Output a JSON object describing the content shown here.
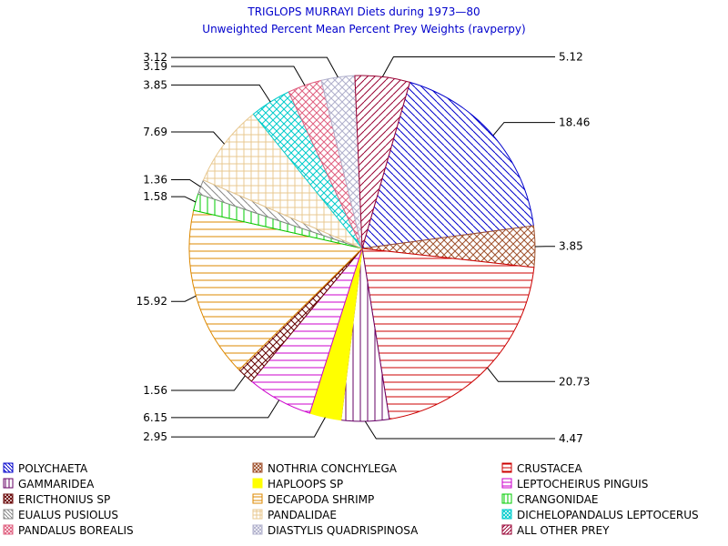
{
  "chart_data": {
    "type": "pie",
    "title": "TRIGLOPS MURRAYI Diets during 1973—80",
    "subtitle": "Unweighted Percent Mean Percent Prey  Weights (ravperpy)",
    "legend_position": "bottom",
    "slices": [
      {
        "name": "POLYCHAETA",
        "value": 18.46,
        "label": "18.46",
        "color": "#0000cc",
        "pattern": "diag-down"
      },
      {
        "name": "NOTHRIA CONCHYLEGA",
        "value": 3.85,
        "label": "3.85",
        "color": "#a0522d",
        "pattern": "crosshatch"
      },
      {
        "name": "CRUSTACEA",
        "value": 20.73,
        "label": "20.73",
        "color": "#cc0000",
        "pattern": "horizontal"
      },
      {
        "name": "GAMMARIDEA",
        "value": 4.47,
        "label": "4.47",
        "color": "#660066",
        "pattern": "vertical"
      },
      {
        "name": "HAPLOOPS SP",
        "value": 2.95,
        "label": "2.95",
        "color": "#ffff00",
        "pattern": "solid"
      },
      {
        "name": "LEPTOCHEIRUS PINGUIS",
        "value": 6.15,
        "label": "6.15",
        "color": "#cc00cc",
        "pattern": "horizontal"
      },
      {
        "name": "ERICTHONIUS SP",
        "value": 1.56,
        "label": "1.56",
        "color": "#660000",
        "pattern": "crosshatch"
      },
      {
        "name": "DECAPODA SHRIMP",
        "value": 15.92,
        "label": "15.92",
        "color": "#dd8800",
        "pattern": "horizontal"
      },
      {
        "name": "CRANGONIDAE",
        "value": 1.58,
        "label": "1.58",
        "color": "#00cc00",
        "pattern": "vertical"
      },
      {
        "name": "EUALUS PUSIOLUS",
        "value": 1.36,
        "label": "1.36",
        "color": "#888888",
        "pattern": "diag-down"
      },
      {
        "name": "PANDALIDAE",
        "value": 7.69,
        "label": "7.69",
        "color": "#e8c890",
        "pattern": "grid"
      },
      {
        "name": "DICHELOPANDALUS LEPTOCERUS",
        "value": 3.85,
        "label": "3.85",
        "color": "#00cccc",
        "pattern": "crosshatch"
      },
      {
        "name": "PANDALUS BOREALIS",
        "value": 3.19,
        "label": "3.19",
        "color": "#e06080",
        "pattern": "crosshatch"
      },
      {
        "name": "DIASTYLIS QUADRISPINOSA",
        "value": 3.12,
        "label": "3.12",
        "color": "#b0b0cc",
        "pattern": "crosshatch"
      },
      {
        "name": "ALL OTHER PREY",
        "value": 5.12,
        "label": "5.12",
        "color": "#990033",
        "pattern": "diag-up"
      }
    ]
  }
}
